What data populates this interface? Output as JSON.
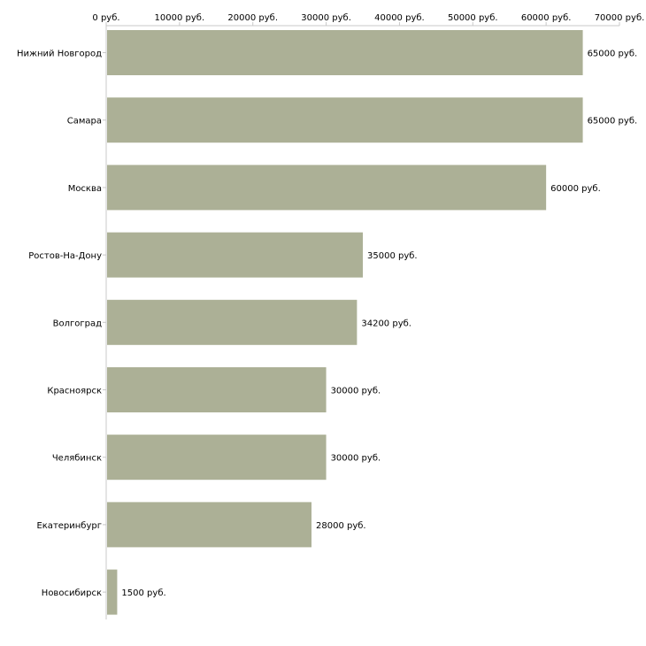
{
  "chart_data": {
    "type": "bar",
    "orientation": "horizontal",
    "title": "",
    "xlabel": "",
    "ylabel": "",
    "unit_suffix": " руб.",
    "categories": [
      "Нижний Новгород",
      "Самара",
      "Москва",
      "Ростов-На-Дону",
      "Волгоград",
      "Красноярск",
      "Челябинск",
      "Екатеринбург",
      "Новосибирск"
    ],
    "values": [
      65000,
      65000,
      60000,
      35000,
      34200,
      30000,
      30000,
      28000,
      1500
    ],
    "value_labels": [
      "65000 руб.",
      "65000 руб.",
      "60000 руб.",
      "35000 руб.",
      "34200 руб.",
      "30000 руб.",
      "30000 руб.",
      "28000 руб.",
      "1500 руб."
    ],
    "xlim": [
      0,
      70000
    ],
    "ticks": [
      0,
      10000,
      20000,
      30000,
      40000,
      50000,
      60000,
      70000
    ],
    "tick_labels": [
      "0 руб.",
      "10000 руб.",
      "20000 руб.",
      "30000 руб.",
      "40000 руб.",
      "50000 руб.",
      "60000 руб.",
      "70000 руб."
    ],
    "axis_position": "top",
    "grid": false,
    "bar_color": "#acb096"
  }
}
